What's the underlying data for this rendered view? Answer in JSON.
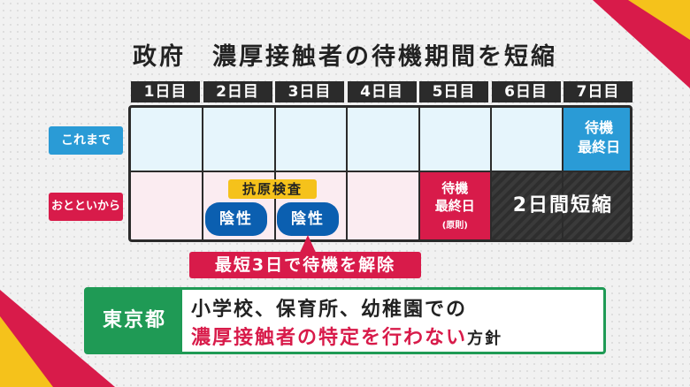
{
  "title": "政府　濃厚接触者の待機期間を短縮",
  "days": [
    "1日目",
    "2日目",
    "3日目",
    "4日目",
    "5日目",
    "6日目",
    "7日目"
  ],
  "rows": {
    "before": "これまで",
    "after": "おとといから"
  },
  "before_last_day": [
    "待機",
    "最終日"
  ],
  "after_last_day": [
    "待機",
    "最終日",
    "(原則)"
  ],
  "antigen_test": "抗原検査",
  "negative": [
    "陰性",
    "陰性"
  ],
  "shortened": "2日間短縮",
  "release": "最短3日で待機を解除",
  "tokyo": {
    "label": "東京都",
    "line1": "小学校、保育所、幼稚園での",
    "line2_red": "濃厚接触者の特定を行わない",
    "line2_tail": "方針"
  },
  "colors": {
    "blue": "#2a9bd6",
    "red": "#d81b4a",
    "green": "#1f9a55",
    "yellow": "#f5c21b",
    "dark": "#2b2b2b"
  }
}
